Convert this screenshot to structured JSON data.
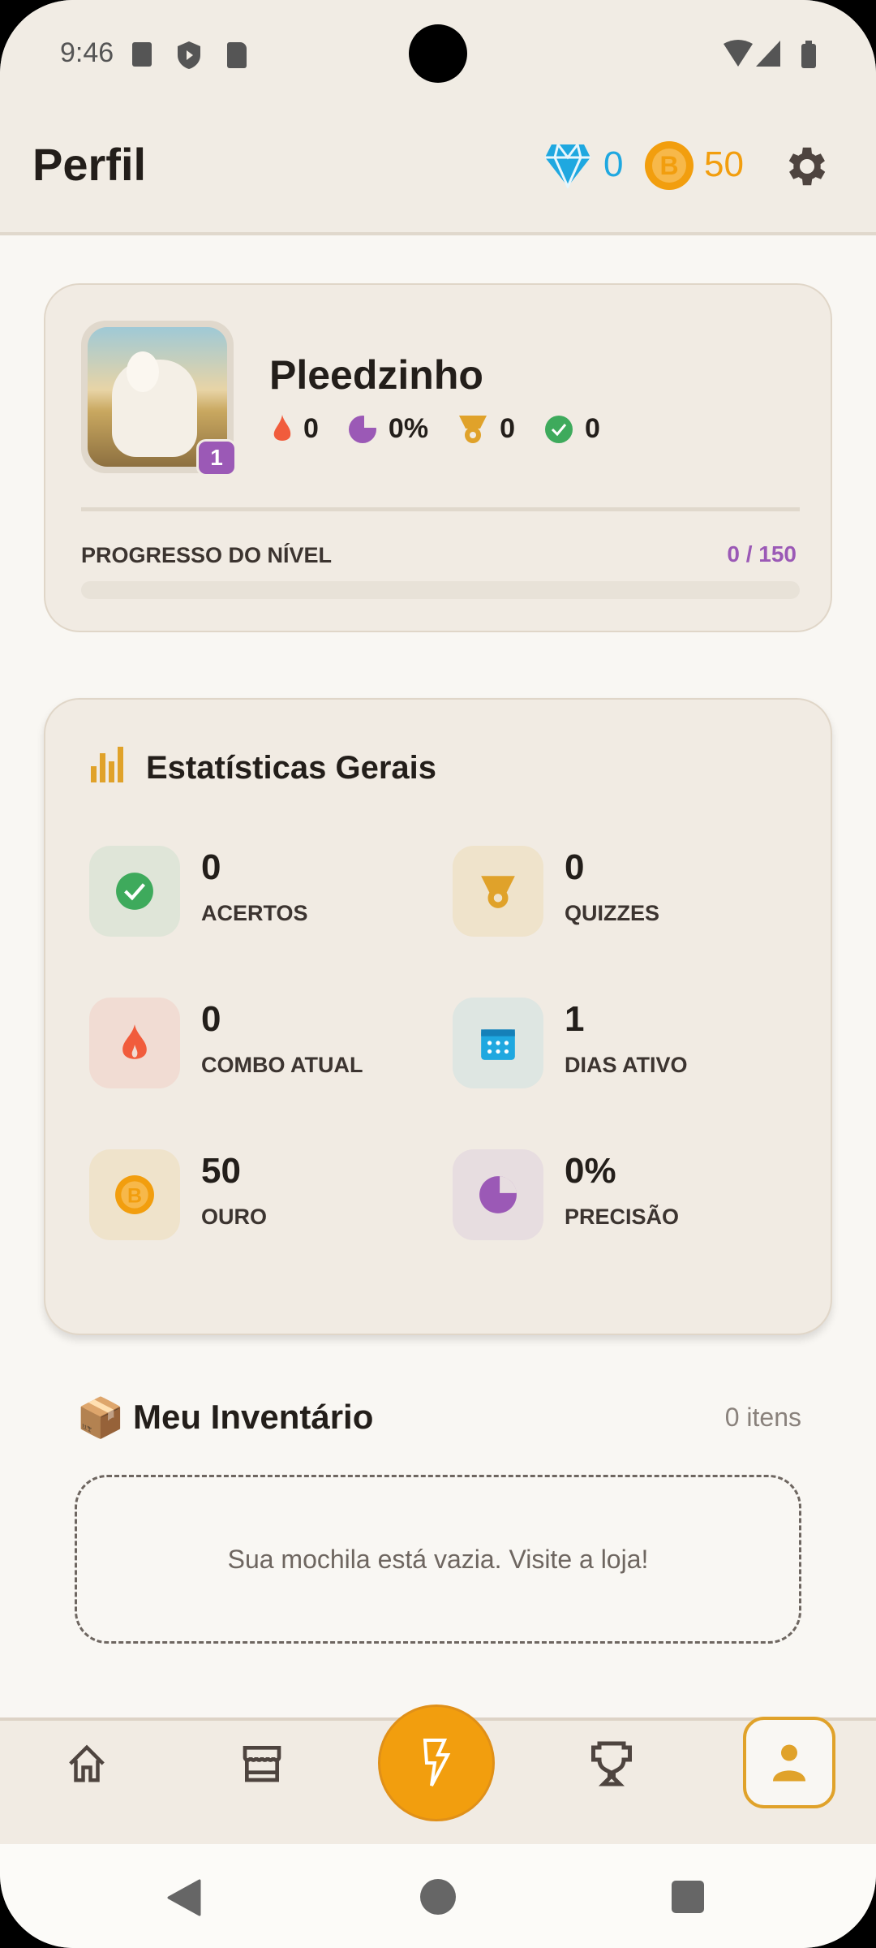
{
  "status_bar": {
    "time": "9:46"
  },
  "header": {
    "title": "Perfil",
    "gems": "0",
    "gold": "50"
  },
  "profile": {
    "name": "Pleedzinho",
    "level": "1",
    "combo": "0",
    "precision": "0%",
    "quizzes": "0",
    "correct": "0",
    "progress_label": "PROGRESSO DO NÍVEL",
    "progress_text": "0 / 150",
    "progress_fraction": 0
  },
  "stats": {
    "title": "Estatísticas Gerais",
    "items": [
      {
        "value": "0",
        "label": "ACERTOS",
        "icon": "check-circle-icon"
      },
      {
        "value": "0",
        "label": "QUIZZES",
        "icon": "medal-icon"
      },
      {
        "value": "0",
        "label": "COMBO ATUAL",
        "icon": "flame-icon"
      },
      {
        "value": "1",
        "label": "DIAS ATIVO",
        "icon": "calendar-icon"
      },
      {
        "value": "50",
        "label": "OURO",
        "icon": "coin-icon"
      },
      {
        "value": "0%",
        "label": "PRECISÃO",
        "icon": "pie-chart-icon"
      }
    ]
  },
  "inventory": {
    "title": "Meu Inventário",
    "emoji": "📦",
    "count": "0 itens",
    "empty_text": "Sua mochila está vazia. Visite a loja!"
  },
  "nav": {
    "items": [
      "home-icon",
      "store-icon",
      "lightning-icon",
      "trophy-icon",
      "person-icon"
    ],
    "active": "person-icon"
  },
  "colors": {
    "accent": "#f29e0e",
    "purple": "#9b59b6",
    "gem": "#1fa8e0"
  }
}
